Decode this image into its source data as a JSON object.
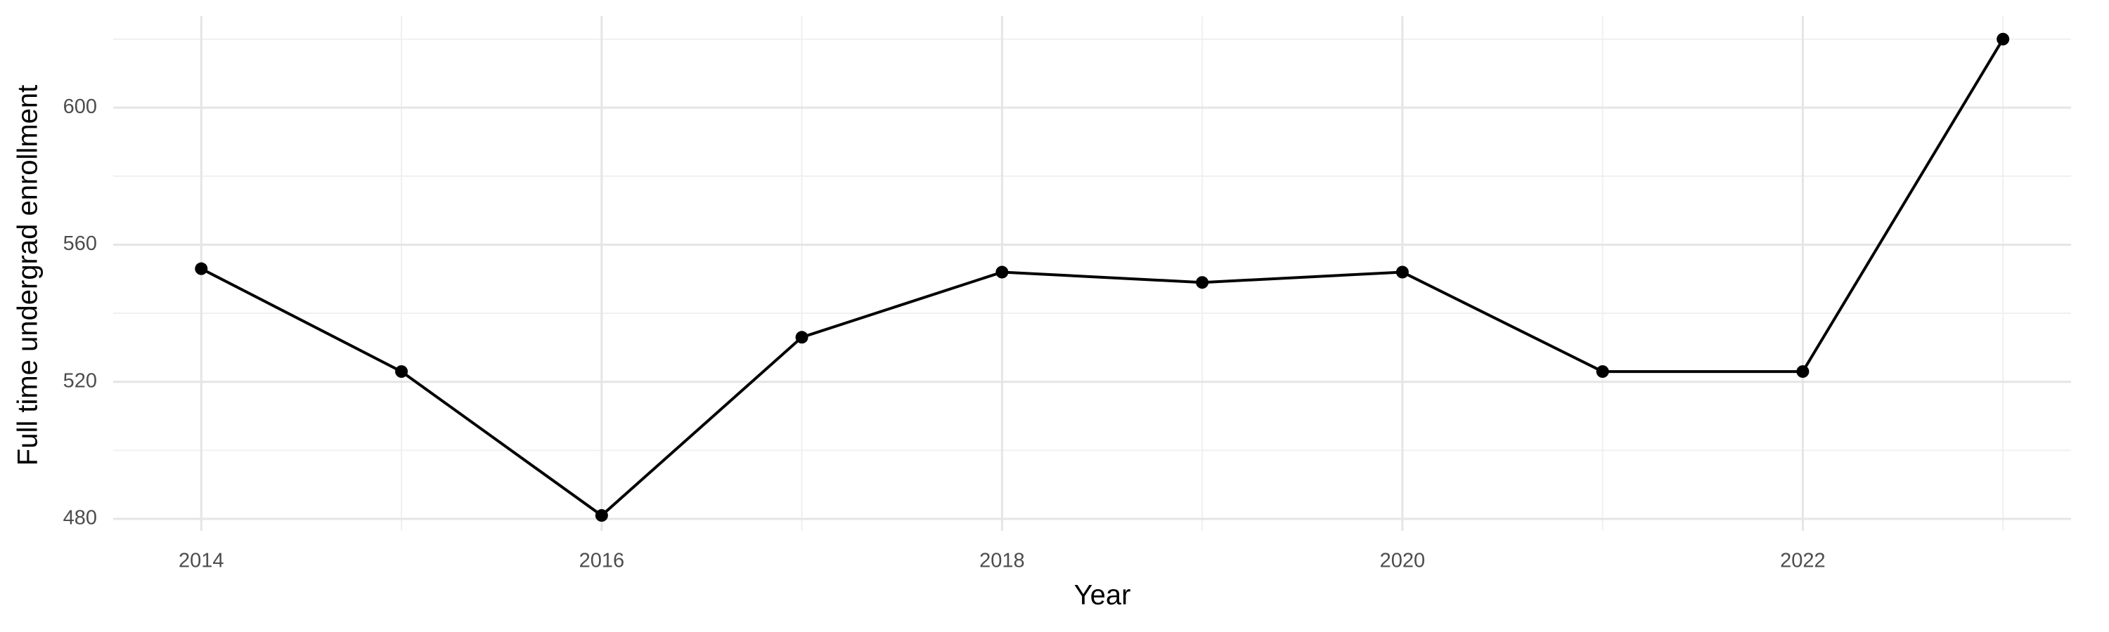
{
  "chart_data": {
    "type": "line",
    "x_label": "Year",
    "y_label": "Full time undergrad enrollment",
    "x": [
      2014,
      2015,
      2016,
      2017,
      2018,
      2019,
      2020,
      2021,
      2022,
      2023
    ],
    "series": [
      {
        "color": "#000000",
        "values": [
          553,
          523,
          481,
          533,
          552,
          549,
          552,
          523,
          523,
          620
        ]
      }
    ],
    "xlim": [
      2013.56,
      2023.34
    ],
    "xticks": [
      2014,
      2016,
      2018,
      2020,
      2022
    ],
    "x_minor_ticks": [
      2015,
      2017,
      2019,
      2021,
      2023
    ],
    "ylim": [
      476.5,
      626.7
    ],
    "yticks": [
      480,
      520,
      560,
      600
    ],
    "y_minor_ticks": [
      500,
      540,
      580,
      620
    ],
    "grid": true
  }
}
